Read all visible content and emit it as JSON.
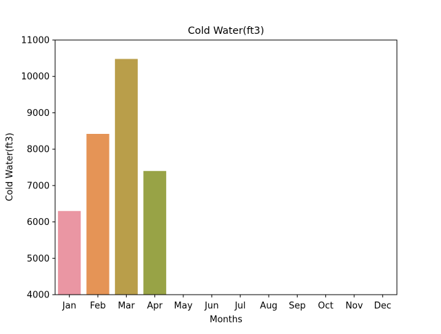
{
  "chart_data": {
    "type": "bar",
    "title": "Cold Water(ft3)",
    "xlabel": "Months",
    "ylabel": "Cold Water(ft3)",
    "categories": [
      "Jan",
      "Feb",
      "Mar",
      "Apr",
      "May",
      "Jun",
      "Jul",
      "Aug",
      "Sep",
      "Oct",
      "Nov",
      "Dec"
    ],
    "values": [
      6300,
      8420,
      10480,
      7400,
      null,
      null,
      null,
      null,
      null,
      null,
      null,
      null
    ],
    "ylim": [
      4000,
      11000
    ],
    "yticks": [
      4000,
      5000,
      6000,
      7000,
      8000,
      9000,
      10000,
      11000
    ],
    "grid": false,
    "legend": "none",
    "colors": [
      "#ea96a3",
      "#e59456",
      "#b99e4a",
      "#98a346",
      "#6aab47",
      "#48ad72",
      "#4aab9a",
      "#4ea9b3",
      "#53a6c8",
      "#93a1e4",
      "#cd8ee4",
      "#e08fc1"
    ]
  }
}
